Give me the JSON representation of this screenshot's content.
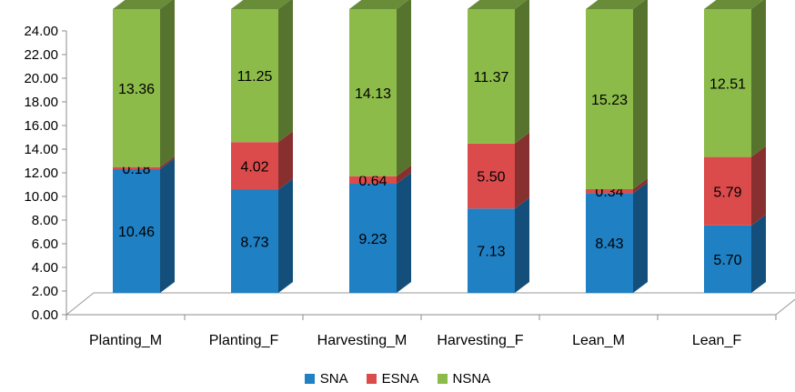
{
  "chart_data": {
    "type": "bar",
    "stacked": true,
    "style": "3d",
    "categories": [
      "Planting_M",
      "Planting_F",
      "Harvesting_M",
      "Harvesting_F",
      "Lean_M",
      "Lean_F"
    ],
    "series": [
      {
        "name": "SNA",
        "color": "#1f80c4",
        "values": [
          10.46,
          8.73,
          9.23,
          7.13,
          8.43,
          5.7
        ],
        "labels": [
          "10.46",
          "8.73",
          "9.23",
          "7.13",
          "8.43",
          "5.70"
        ]
      },
      {
        "name": "ESNA",
        "color": "#dc4b4b",
        "values": [
          0.18,
          4.02,
          0.64,
          5.5,
          0.34,
          5.79
        ],
        "labels": [
          "0.18",
          "4.02",
          "0.64",
          "5.50",
          "0.34",
          "5.79"
        ]
      },
      {
        "name": "NSNA",
        "color": "#8cbb4a",
        "values": [
          13.36,
          11.25,
          14.13,
          11.37,
          15.23,
          12.51
        ],
        "labels": [
          "13.36",
          "11.25",
          "14.13",
          "11.37",
          "15.23",
          "12.51"
        ]
      }
    ],
    "ylim": [
      0,
      24
    ],
    "yticks": [
      "0.00",
      "2.00",
      "4.00",
      "6.00",
      "8.00",
      "10.00",
      "12.00",
      "14.00",
      "16.00",
      "18.00",
      "20.00",
      "22.00",
      "24.00"
    ],
    "ytick_values": [
      0,
      2,
      4,
      6,
      8,
      10,
      12,
      14,
      16,
      18,
      20,
      22,
      24
    ],
    "grid": false,
    "legend": "bottom",
    "title": "",
    "xlabel": "",
    "ylabel": ""
  }
}
